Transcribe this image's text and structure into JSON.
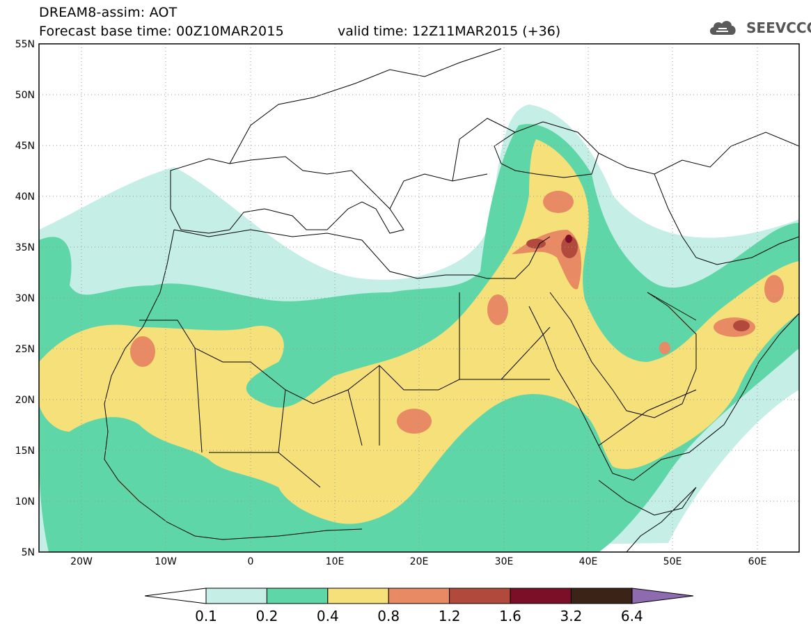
{
  "header": {
    "title": "DREAM8-assim: AOT",
    "base_time": "Forecast base time: 00Z10MAR2015",
    "valid_time": "valid time: 12Z11MAR2015 (+36)",
    "logo_text": "SEEVCCC"
  },
  "map": {
    "lat_labels": [
      "55N",
      "50N",
      "45N",
      "40N",
      "35N",
      "30N",
      "25N",
      "20N",
      "15N",
      "10N",
      "5N"
    ],
    "lon_labels": [
      "20W",
      "10W",
      "0",
      "10E",
      "20E",
      "30E",
      "40E",
      "50E",
      "60E"
    ]
  },
  "colorbar": {
    "labels": [
      "0.1",
      "0.2",
      "0.4",
      "0.8",
      "1.2",
      "1.6",
      "3.2",
      "6.4"
    ],
    "colors": [
      "#c5eee6",
      "#5fd6a8",
      "#f5e07a",
      "#e88a63",
      "#b14a3c",
      "#7a0f27",
      "#3b2417",
      "#8e6aae"
    ]
  },
  "colors": {
    "background": "#ffffff",
    "coast": "#000000"
  }
}
